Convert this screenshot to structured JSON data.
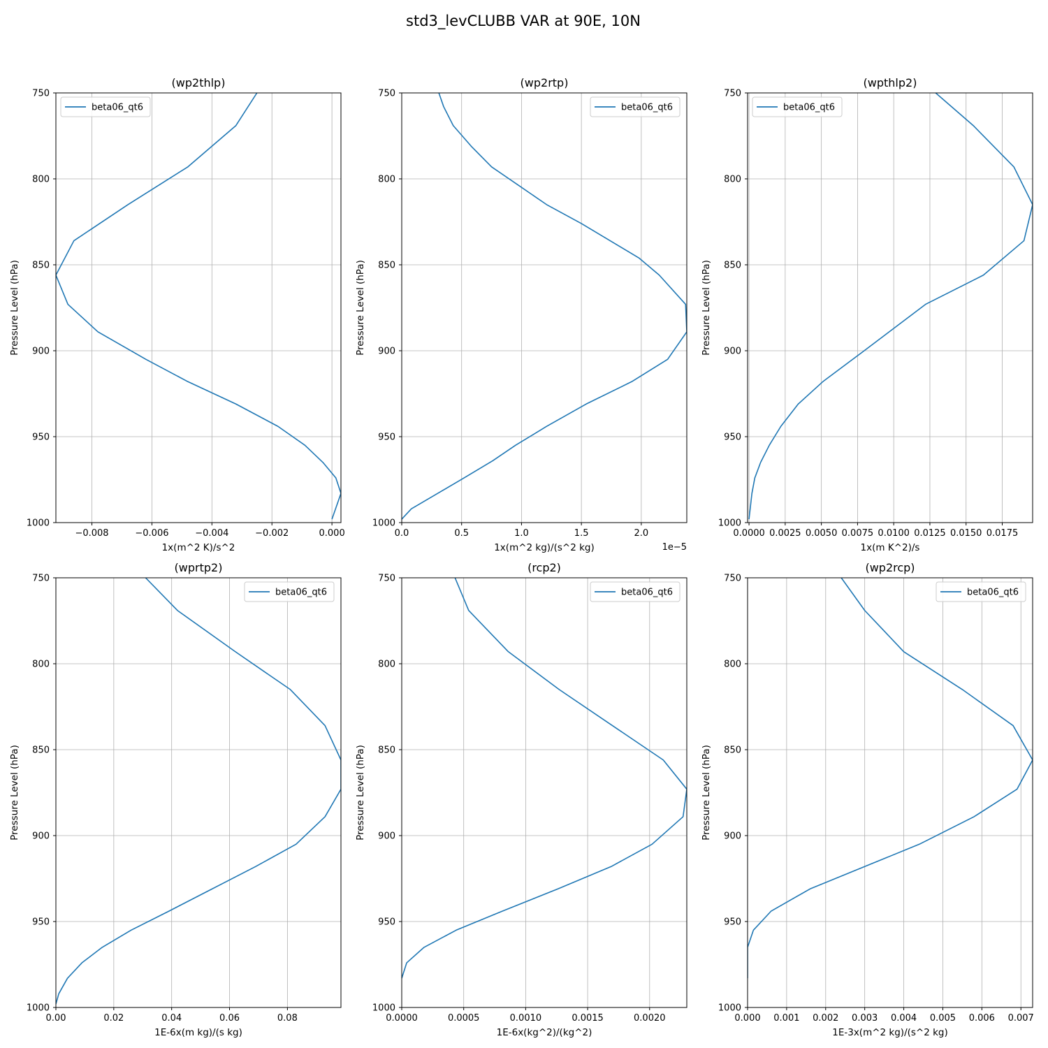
{
  "figure": {
    "title": "std3_levCLUBB VAR at 90E, 10N",
    "line_color": "#1f77b4",
    "grid_color": "#b0b0b0"
  },
  "chart_data": [
    {
      "type": "line",
      "title": "(wp2thlp)",
      "xlabel": "1x(m^2 K)/s^2",
      "ylabel": "Pressure Level (hPa)",
      "xlim": [
        -0.0092,
        0.0003
      ],
      "ylim": [
        1000,
        750
      ],
      "xticks": [
        -0.008,
        -0.006,
        -0.004,
        -0.002,
        0.0
      ],
      "xtick_labels": [
        "−0.008",
        "−0.006",
        "−0.004",
        "−0.002",
        "0.000"
      ],
      "yticks": [
        750,
        800,
        850,
        900,
        950,
        1000
      ],
      "ytick_labels": [
        "750",
        "800",
        "850",
        "900",
        "950",
        "1000"
      ],
      "offset_text": "",
      "legend": "upper left",
      "grid": true,
      "series": [
        {
          "name": "beta06_qt6",
          "x": [
            -0.0025,
            -0.0032,
            -0.0048,
            -0.0068,
            -0.0086,
            -0.0092,
            -0.0088,
            -0.0078,
            -0.0062,
            -0.0048,
            -0.0032,
            -0.0018,
            -0.0009,
            -0.0003,
            0.00013,
            0.0003,
            0.0
          ],
          "y": [
            750,
            769,
            793,
            815,
            836,
            856,
            873,
            889,
            905,
            918,
            931,
            944,
            955,
            965,
            974,
            983,
            998
          ]
        }
      ]
    },
    {
      "type": "line",
      "title": "(wp2rtp)",
      "xlabel": "1x(m^2 kg)/(s^2 kg)",
      "ylabel": "Pressure Level (hPa)",
      "xlim": [
        0.0,
        2.38
      ],
      "ylim": [
        1000,
        750
      ],
      "xticks": [
        0.0,
        0.5,
        1.0,
        1.5,
        2.0
      ],
      "xtick_labels": [
        "0.0",
        "0.5",
        "1.0",
        "1.5",
        "2.0"
      ],
      "yticks": [
        750,
        800,
        850,
        900,
        950,
        1000
      ],
      "ytick_labels": [
        "750",
        "800",
        "850",
        "900",
        "950",
        "1000"
      ],
      "offset_text": "1e−5",
      "legend": "upper right",
      "grid": true,
      "series": [
        {
          "name": "beta06_qt6",
          "x": [
            0.31,
            0.35,
            0.43,
            0.58,
            0.75,
            0.98,
            1.21,
            1.5,
            1.74,
            1.98,
            2.15,
            2.37,
            2.38,
            2.22,
            1.92,
            1.54,
            1.21,
            0.95,
            0.76,
            0.52,
            0.3,
            0.08,
            0.0
          ],
          "y": [
            750,
            758,
            769,
            781,
            793,
            804,
            815,
            826,
            836,
            846,
            856,
            873,
            889,
            905,
            918,
            931,
            944,
            955,
            964,
            974,
            983,
            992,
            998
          ]
        }
      ]
    },
    {
      "type": "line",
      "title": "(wpthlp2)",
      "xlabel": "1x(m K^2)/s",
      "ylabel": "Pressure Level (hPa)",
      "xlim": [
        -0.0001,
        0.0196
      ],
      "ylim": [
        1000,
        750
      ],
      "xticks": [
        0.0,
        0.0025,
        0.005,
        0.0075,
        0.01,
        0.0125,
        0.015,
        0.0175
      ],
      "xtick_labels": [
        "0.0000",
        "0.0025",
        "0.0050",
        "0.0075",
        "0.0100",
        "0.0125",
        "0.0150",
        "0.0175"
      ],
      "yticks": [
        750,
        800,
        850,
        900,
        950,
        1000
      ],
      "ytick_labels": [
        "750",
        "800",
        "850",
        "900",
        "950",
        "1000"
      ],
      "offset_text": "",
      "legend": "upper left",
      "grid": true,
      "series": [
        {
          "name": "beta06_qt6",
          "x": [
            0.0129,
            0.0155,
            0.0183,
            0.0196,
            0.019,
            0.0162,
            0.0122,
            0.0078,
            0.0051,
            0.0034,
            0.0022,
            0.0014,
            0.0008,
            0.0004,
            0.0002,
            0.0
          ],
          "y": [
            750,
            769,
            793,
            815,
            836,
            856,
            873,
            901,
            918,
            931,
            944,
            955,
            965,
            974,
            983,
            998
          ]
        }
      ]
    },
    {
      "type": "line",
      "title": "(wprtp2)",
      "xlabel": "1E-6x(m kg)/(s kg)",
      "ylabel": "Pressure Level (hPa)",
      "xlim": [
        0.0,
        0.0985
      ],
      "ylim": [
        1000,
        750
      ],
      "xticks": [
        0.0,
        0.02,
        0.04,
        0.06,
        0.08
      ],
      "xtick_labels": [
        "0.00",
        "0.02",
        "0.04",
        "0.06",
        "0.08"
      ],
      "yticks": [
        750,
        800,
        850,
        900,
        950,
        1000
      ],
      "ytick_labels": [
        "750",
        "800",
        "850",
        "900",
        "950",
        "1000"
      ],
      "offset_text": "",
      "legend": "upper right",
      "grid": true,
      "series": [
        {
          "name": "beta06_qt6",
          "x": [
            0.031,
            0.042,
            0.062,
            0.081,
            0.093,
            0.0985,
            0.0985,
            0.093,
            0.083,
            0.069,
            0.054,
            0.039,
            0.026,
            0.016,
            0.009,
            0.004,
            0.001,
            0.0
          ],
          "y": [
            750,
            769,
            793,
            815,
            836,
            856,
            873,
            889,
            905,
            918,
            931,
            944,
            955,
            965,
            974,
            983,
            992,
            998
          ]
        }
      ]
    },
    {
      "type": "line",
      "title": "(rcp2)",
      "xlabel": "1E-6x(kg^2)/(kg^2)",
      "ylabel": "Pressure Level (hPa)",
      "xlim": [
        0.0,
        0.0023
      ],
      "ylim": [
        1000,
        750
      ],
      "xticks": [
        0.0,
        0.0005,
        0.001,
        0.0015,
        0.002
      ],
      "xtick_labels": [
        "0.0000",
        "0.0005",
        "0.0010",
        "0.0015",
        "0.0020"
      ],
      "yticks": [
        750,
        800,
        850,
        900,
        950,
        1000
      ],
      "ytick_labels": [
        "750",
        "800",
        "850",
        "900",
        "950",
        "1000"
      ],
      "offset_text": "",
      "legend": "upper right",
      "grid": true,
      "series": [
        {
          "name": "beta06_qt6",
          "x": [
            0.00043,
            0.00054,
            0.00086,
            0.00127,
            0.0017,
            0.00211,
            0.0023,
            0.00227,
            0.00202,
            0.00169,
            0.00126,
            0.00081,
            0.00044,
            0.00018,
            4e-05,
            0.0
          ],
          "y": [
            750,
            769,
            793,
            815,
            836,
            856,
            873,
            889,
            905,
            918,
            931,
            944,
            955,
            965,
            974,
            983
          ]
        }
      ]
    },
    {
      "type": "line",
      "title": "(wp2rcp)",
      "xlabel": "1E-3x(m^2 kg)/(s^2 kg)",
      "ylabel": "Pressure Level (hPa)",
      "xlim": [
        0.0,
        0.0073
      ],
      "ylim": [
        1000,
        750
      ],
      "xticks": [
        0.0,
        0.001,
        0.002,
        0.003,
        0.004,
        0.005,
        0.006,
        0.007
      ],
      "xtick_labels": [
        "0.000",
        "0.001",
        "0.002",
        "0.003",
        "0.004",
        "0.005",
        "0.006",
        "0.007"
      ],
      "yticks": [
        750,
        800,
        850,
        900,
        950,
        1000
      ],
      "ytick_labels": [
        "750",
        "800",
        "850",
        "900",
        "950",
        "1000"
      ],
      "offset_text": "",
      "legend": "upper right",
      "grid": true,
      "series": [
        {
          "name": "beta06_qt6",
          "x": [
            0.0024,
            0.003,
            0.004,
            0.0055,
            0.0068,
            0.0073,
            0.0069,
            0.0058,
            0.0044,
            0.003,
            0.0016,
            0.0006,
            0.00015,
            0.0,
            0.0
          ],
          "y": [
            750,
            769,
            793,
            815,
            836,
            856,
            873,
            889,
            905,
            918,
            931,
            944,
            955,
            965,
            983
          ]
        }
      ]
    }
  ]
}
